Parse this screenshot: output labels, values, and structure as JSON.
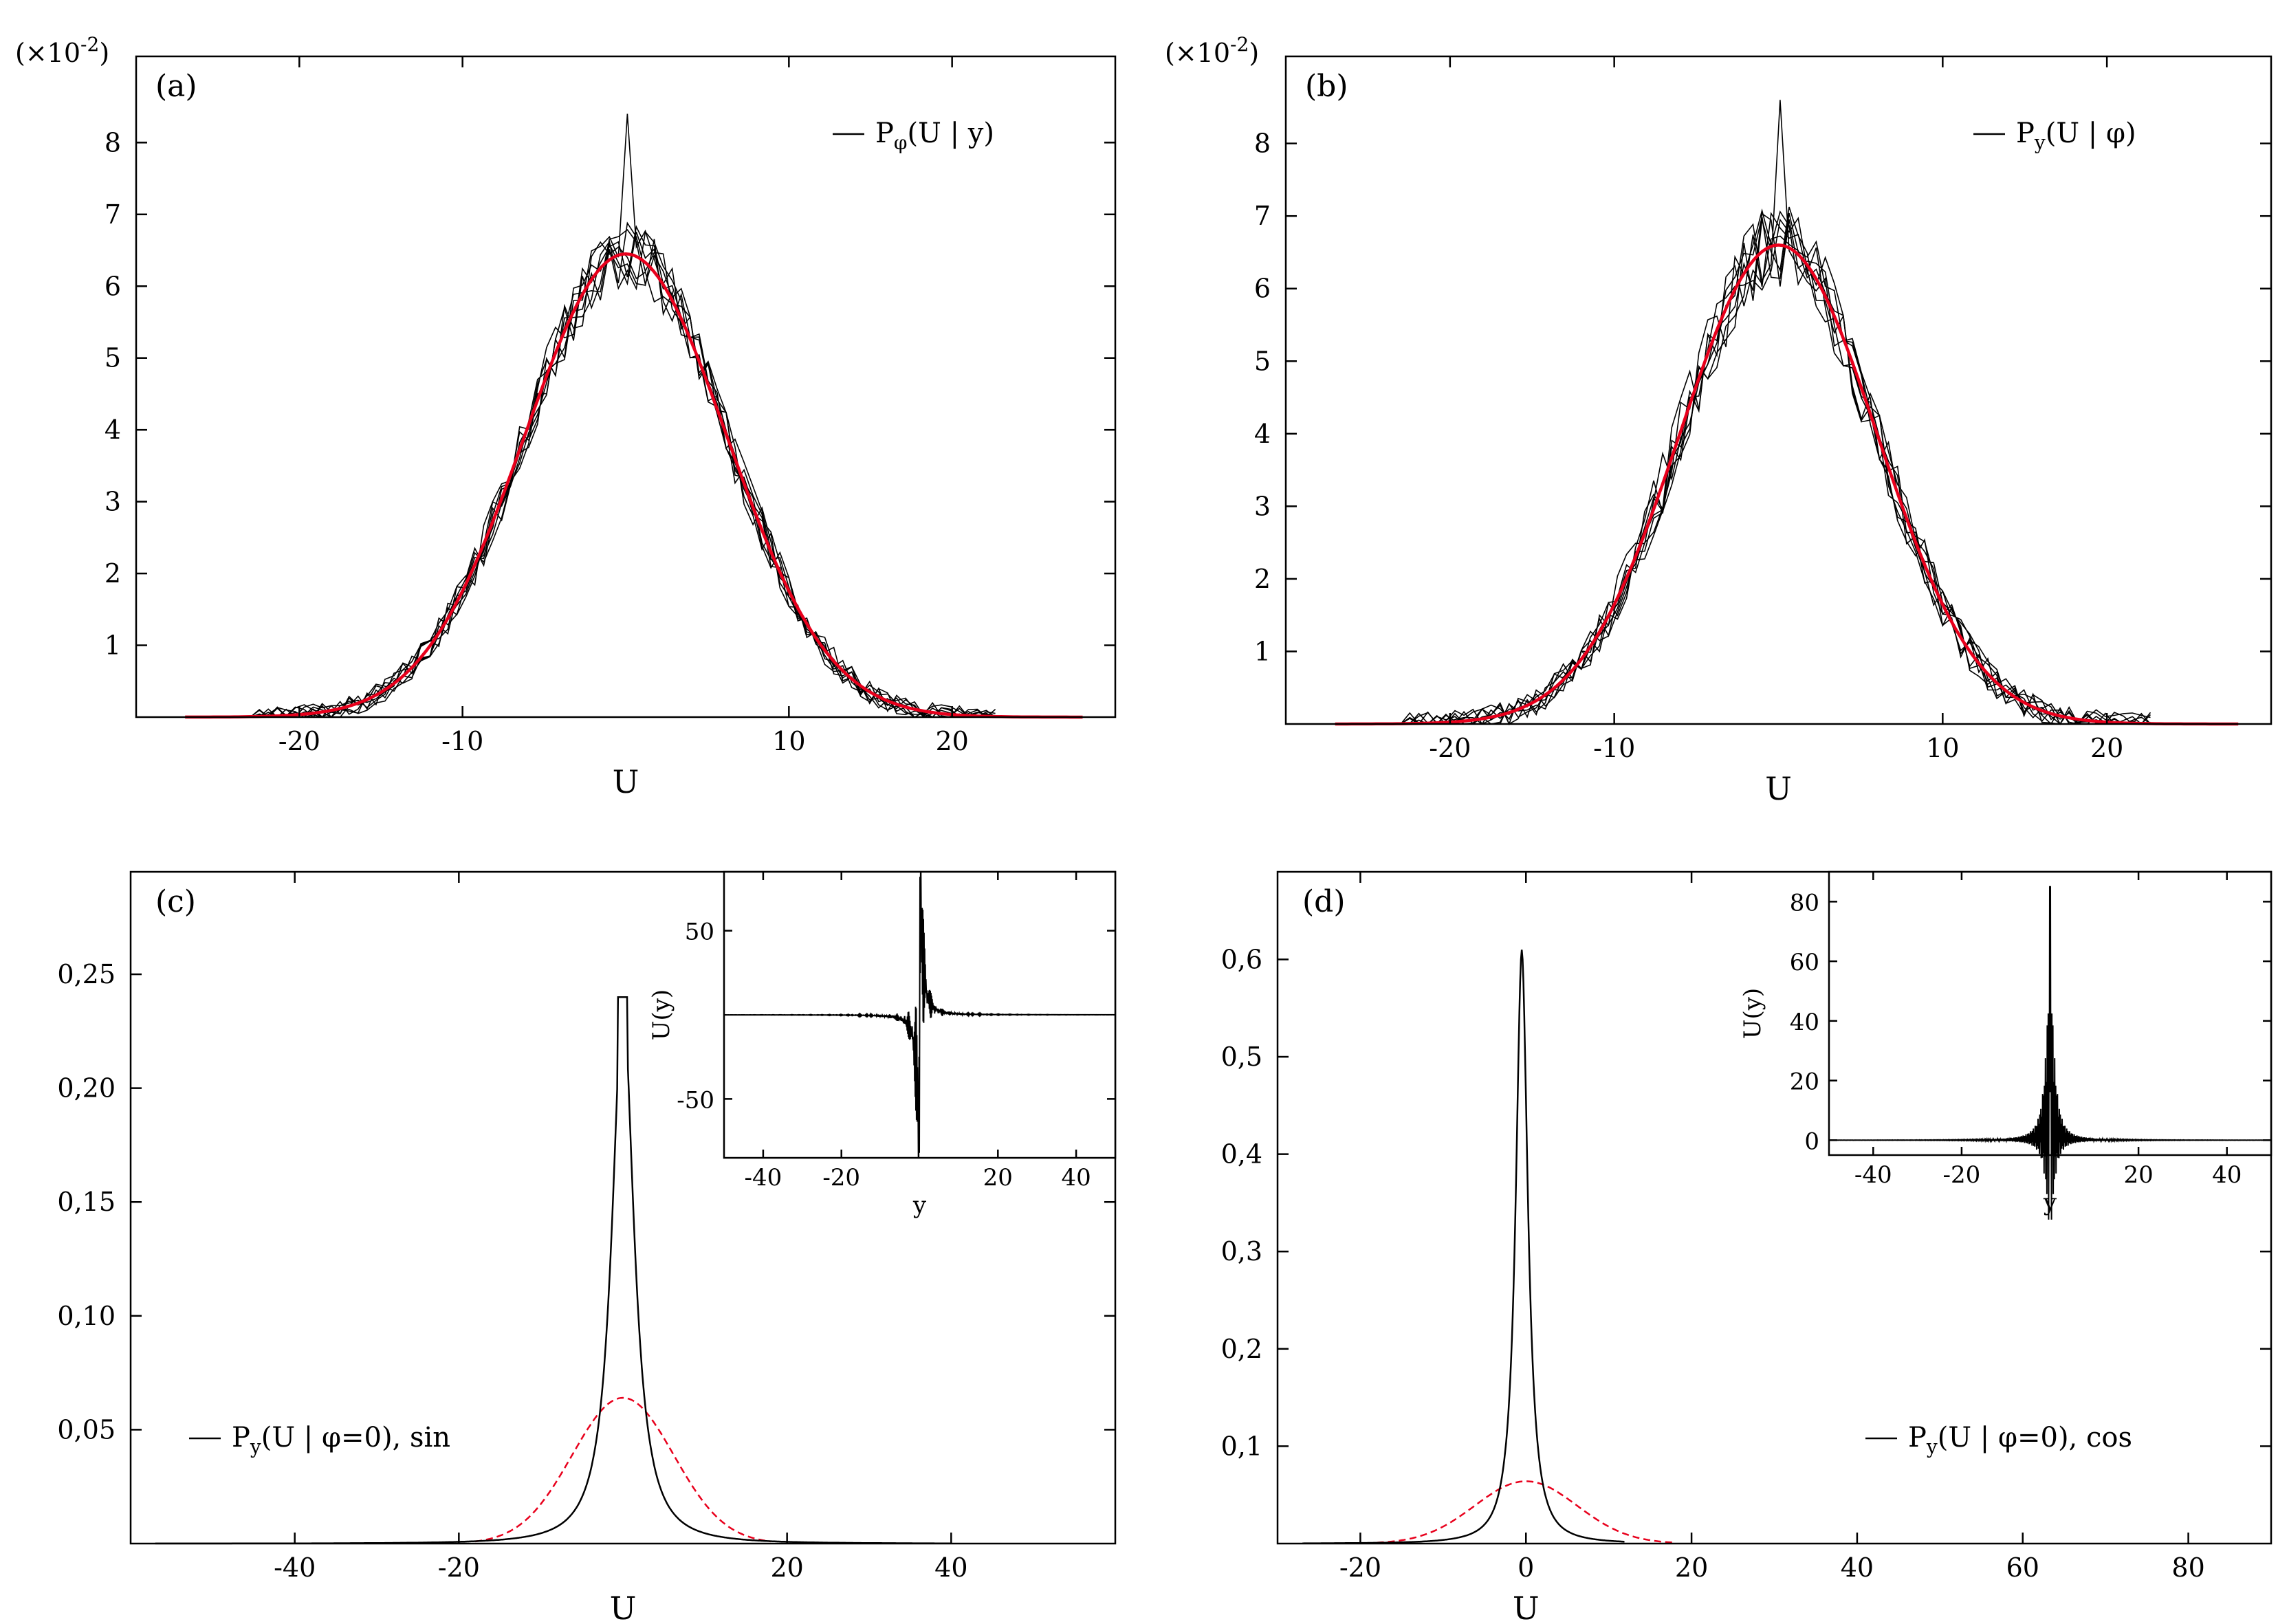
{
  "chart_data": [
    {
      "id": "a",
      "type": "line",
      "panel_label": "(a)",
      "scale_label": "(×10",
      "scale_exp": "-2",
      "xlabel": "U",
      "ylabel": "",
      "xlim": [
        -30,
        30
      ],
      "ylim": [
        0,
        9.2
      ],
      "xticks": [
        -20,
        -10,
        10,
        20
      ],
      "xtick_labels": [
        "-20",
        "-10",
        "10",
        "20"
      ],
      "yticks": [
        1,
        2,
        3,
        4,
        5,
        6,
        7,
        8
      ],
      "ytick_labels": [
        "1",
        "2",
        "3",
        "4",
        "5",
        "6",
        "7",
        "8"
      ],
      "legend_main": "P",
      "legend_sub": "φ",
      "legend_rest": "(U | y)",
      "noisy_curves": 8,
      "gaussian": {
        "peak": 6.45,
        "mean": 0,
        "sigma": 6.2
      },
      "noise_amplitude": 0.45,
      "spike": {
        "x": 0,
        "value": 8.4
      }
    },
    {
      "id": "b",
      "type": "line",
      "panel_label": "(b)",
      "scale_label": "(×10",
      "scale_exp": "-2",
      "xlabel": "U",
      "ylabel": "",
      "xlim": [
        -30,
        30
      ],
      "ylim": [
        0,
        9.2
      ],
      "xticks": [
        -20,
        -10,
        10,
        20
      ],
      "xtick_labels": [
        "-20",
        "-10",
        "10",
        "20"
      ],
      "yticks": [
        1,
        2,
        3,
        4,
        5,
        6,
        7,
        8
      ],
      "ytick_labels": [
        "1",
        "2",
        "3",
        "4",
        "5",
        "6",
        "7",
        "8"
      ],
      "legend_main": "P",
      "legend_sub": "y",
      "legend_rest": "(U | φ)",
      "noisy_curves": 8,
      "gaussian": {
        "peak": 6.6,
        "mean": 0,
        "sigma": 6.0
      },
      "noise_amplitude": 0.55,
      "spike": {
        "x": 0,
        "value": 8.6
      }
    },
    {
      "id": "c",
      "type": "line",
      "panel_label": "(c)",
      "xlabel": "U",
      "ylabel": "",
      "xlim": [
        -60,
        60
      ],
      "ylim": [
        0,
        0.295
      ],
      "xticks": [
        -40,
        -20,
        20,
        40
      ],
      "xtick_labels": [
        "-40",
        "-20",
        "20",
        "40"
      ],
      "yticks": [
        0.05,
        0.1,
        0.15,
        0.2,
        0.25
      ],
      "ytick_labels": [
        "0,05",
        "0,10",
        "0,15",
        "0,20",
        "0,25"
      ],
      "legend_main": "P",
      "legend_sub": "y",
      "legend_rest": "(U | φ=0),  sin",
      "peak_curve": {
        "peak": 0.24,
        "center": 0,
        "width": 1.7
      },
      "reference_gaussian": {
        "peak": 0.064,
        "mean": 0,
        "sigma": 6.2
      },
      "inset": {
        "xlabel": "y",
        "ylabel": "U(y)",
        "xlim": [
          -50,
          50
        ],
        "ylim": [
          -85,
          85
        ],
        "xticks": [
          -40,
          -20,
          20,
          40
        ],
        "xtick_labels": [
          "-40",
          "-20",
          "20",
          "40"
        ],
        "yticks": [
          -50,
          50
        ],
        "ytick_labels": [
          "-50",
          "50"
        ],
        "signal": "sin",
        "amplitude": 85
      }
    },
    {
      "id": "d",
      "type": "line",
      "panel_label": "(d)",
      "xlabel": "U",
      "ylabel": "",
      "xlim": [
        -30,
        90
      ],
      "ylim": [
        0,
        0.69
      ],
      "xticks": [
        -20,
        0,
        20,
        40,
        60,
        80
      ],
      "xtick_labels": [
        "-20",
        "0",
        "20",
        "40",
        "60",
        "80"
      ],
      "yticks": [
        0.1,
        0.2,
        0.3,
        0.4,
        0.5,
        0.6
      ],
      "ytick_labels": [
        "0,1",
        "0,2",
        "0,3",
        "0,4",
        "0,5",
        "0,6"
      ],
      "legend_main": "P",
      "legend_sub": "y",
      "legend_rest": "(U | φ=0), cos",
      "peak_curve": {
        "peak": 0.61,
        "center": -0.5,
        "width": 0.9
      },
      "reference_gaussian": {
        "peak": 0.064,
        "mean": 0,
        "sigma": 6.2
      },
      "inset": {
        "xlabel": "y",
        "ylabel": "U(y)",
        "xlim": [
          -50,
          50
        ],
        "ylim": [
          -5,
          90
        ],
        "xticks": [
          -40,
          -20,
          20,
          40
        ],
        "xtick_labels": [
          "-40",
          "-20",
          "20",
          "40"
        ],
        "yticks": [
          0,
          20,
          40,
          60,
          80
        ],
        "ytick_labels": [
          "0",
          "20",
          "40",
          "60",
          "80"
        ],
        "signal": "cos",
        "amplitude": 85
      }
    }
  ],
  "colors": {
    "axis": "#000000",
    "noisy": "#000000",
    "fit": "#e8001c",
    "reference": "#e8001c"
  }
}
